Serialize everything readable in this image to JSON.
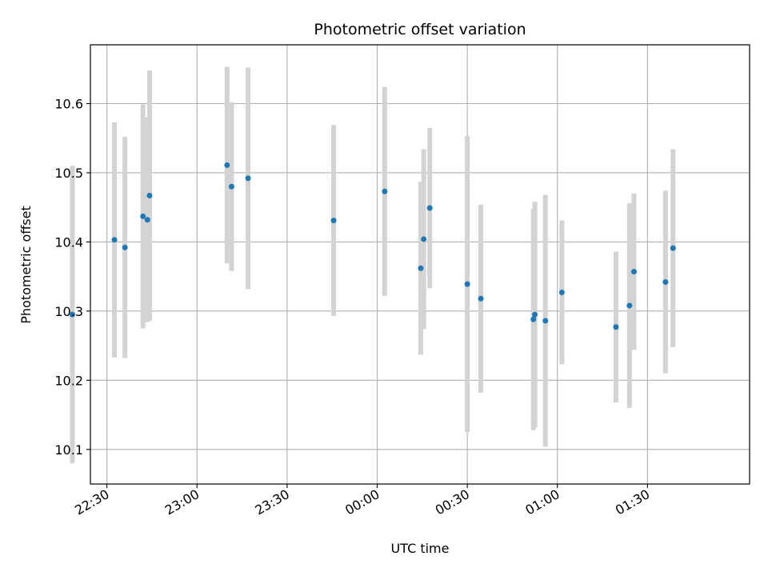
{
  "chart_data": {
    "type": "scatter",
    "title": "Photometric offset variation",
    "xlabel": "UTC time",
    "ylabel": "Photometric offset",
    "x_unit": "minutes relative to 00:00 UTC",
    "xlim": [
      -95.5,
      124
    ],
    "ylim": [
      10.05,
      10.685
    ],
    "grid": true,
    "colors": {
      "points": "#1f77b4",
      "errorbars": "#d3d3d3",
      "grid": "#b0b0b0"
    },
    "x_ticks": [
      {
        "value": -90,
        "label": "22:30"
      },
      {
        "value": -60,
        "label": "23:00"
      },
      {
        "value": -30,
        "label": "23:30"
      },
      {
        "value": 0,
        "label": "00:00"
      },
      {
        "value": 30,
        "label": "00:30"
      },
      {
        "value": 60,
        "label": "01:00"
      },
      {
        "value": 90,
        "label": "01:30"
      }
    ],
    "y_ticks": [
      {
        "value": 10.1,
        "label": "10.1"
      },
      {
        "value": 10.2,
        "label": "10.2"
      },
      {
        "value": 10.3,
        "label": "10.3"
      },
      {
        "value": 10.4,
        "label": "10.4"
      },
      {
        "value": 10.5,
        "label": "10.5"
      },
      {
        "value": 10.6,
        "label": "10.6"
      }
    ],
    "points": [
      {
        "x": -101.5,
        "y": 10.295,
        "err": 0.215
      },
      {
        "x": -87.5,
        "y": 10.403,
        "err": 0.17
      },
      {
        "x": -84.0,
        "y": 10.392,
        "err": 0.16
      },
      {
        "x": -78.0,
        "y": 10.437,
        "err": 0.162
      },
      {
        "x": -76.5,
        "y": 10.432,
        "err": 0.148
      },
      {
        "x": -75.8,
        "y": 10.467,
        "err": 0.181
      },
      {
        "x": -50.0,
        "y": 10.511,
        "err": 0.142
      },
      {
        "x": -48.5,
        "y": 10.48,
        "err": 0.122
      },
      {
        "x": -43.0,
        "y": 10.492,
        "err": 0.16
      },
      {
        "x": -14.5,
        "y": 10.431,
        "err": 0.138
      },
      {
        "x": 2.5,
        "y": 10.473,
        "err": 0.151
      },
      {
        "x": 14.5,
        "y": 10.362,
        "err": 0.125
      },
      {
        "x": 15.5,
        "y": 10.404,
        "err": 0.13
      },
      {
        "x": 17.5,
        "y": 10.449,
        "err": 0.116
      },
      {
        "x": 30.0,
        "y": 10.339,
        "err": 0.214
      },
      {
        "x": 34.5,
        "y": 10.318,
        "err": 0.136
      },
      {
        "x": 52.0,
        "y": 10.288,
        "err": 0.16
      },
      {
        "x": 52.5,
        "y": 10.295,
        "err": 0.163
      },
      {
        "x": 56.0,
        "y": 10.286,
        "err": 0.182
      },
      {
        "x": 61.5,
        "y": 10.327,
        "err": 0.104
      },
      {
        "x": 79.5,
        "y": 10.277,
        "err": 0.109
      },
      {
        "x": 84.0,
        "y": 10.308,
        "err": 0.148
      },
      {
        "x": 85.5,
        "y": 10.357,
        "err": 0.113
      },
      {
        "x": 96.0,
        "y": 10.342,
        "err": 0.132
      },
      {
        "x": 98.5,
        "y": 10.391,
        "err": 0.143
      }
    ]
  }
}
